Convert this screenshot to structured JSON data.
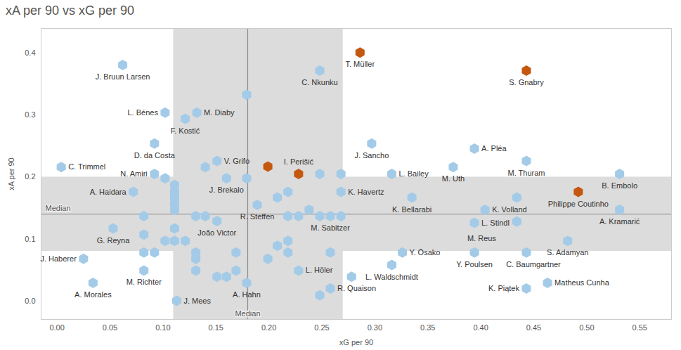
{
  "chart_data": {
    "type": "scatter",
    "title": "xA per 90 vs xG per 90",
    "x_label": "xG per 90",
    "y_label": "xA per 90",
    "xlim": [
      -0.015,
      0.58
    ],
    "ylim": [
      -0.03,
      0.44
    ],
    "xticks": [
      {
        "value": 0,
        "label": "0.00"
      },
      0.05,
      {
        "value": 0.1,
        "label": "0.10"
      },
      0.15,
      {
        "value": 0.2,
        "label": "0.20"
      },
      0.25,
      {
        "value": 0.3,
        "label": "0.30"
      },
      0.35,
      {
        "value": 0.4,
        "label": "0.40"
      },
      0.45,
      {
        "value": 0.5,
        "label": "0.50"
      },
      0.55
    ],
    "yticks": [
      {
        "value": 0,
        "label": "0.0"
      },
      0.1,
      0.2,
      0.3,
      0.4
    ],
    "grid": false,
    "marker": "hexagon",
    "bands": [
      {
        "axis": "x",
        "range": [
          0.11,
          0.27
        ]
      },
      {
        "axis": "y",
        "range": [
          0.08,
          0.2
        ]
      }
    ],
    "medians": [
      {
        "axis": "x",
        "value": 0.18,
        "label": "Median"
      },
      {
        "axis": "y",
        "value": 0.14,
        "label": "Median"
      }
    ],
    "x": [
      0.062,
      0.248,
      0.286,
      0.443,
      0.102,
      0.132,
      0.121,
      0.092,
      0.297,
      0.394,
      0.004,
      0.092,
      0.151,
      0.228,
      0.316,
      0.374,
      0.443,
      0.531,
      0.492,
      0.531,
      0.072,
      0.16,
      0.268,
      0.189,
      0.335,
      0.404,
      0.394,
      0.434,
      0.258,
      0.151,
      0.053,
      0.326,
      0.482,
      0.394,
      0.443,
      0.025,
      0.034,
      0.082,
      0.113,
      0.179,
      0.228,
      0.258,
      0.316,
      0.443,
      0.463,
      0.199,
      0.082,
      0.082,
      0.082,
      0.092,
      0.102,
      0.102,
      0.111,
      0.111,
      0.111,
      0.111,
      0.111,
      0.111,
      0.111,
      0.121,
      0.131,
      0.131,
      0.131,
      0.131,
      0.14,
      0.14,
      0.151,
      0.16,
      0.169,
      0.169,
      0.179,
      0.179,
      0.199,
      0.208,
      0.208,
      0.218,
      0.218,
      0.218,
      0.218,
      0.228,
      0.238,
      0.248,
      0.248,
      0.248,
      0.258,
      0.268,
      0.268,
      0.278,
      0.434
    ],
    "y": [
      0.381,
      0.372,
      0.401,
      0.372,
      0.304,
      0.304,
      0.294,
      0.254,
      0.254,
      0.246,
      0.216,
      0.205,
      0.226,
      0.205,
      0.205,
      0.216,
      0.226,
      0.205,
      0.176,
      0.147,
      0.176,
      0.198,
      0.176,
      0.155,
      0.167,
      0.147,
      0.126,
      0.128,
      0.137,
      0.129,
      0.117,
      0.078,
      0.097,
      0.078,
      0.078,
      0.068,
      0.029,
      0.049,
      0.0,
      0.029,
      0.049,
      0.02,
      0.058,
      0.02,
      0.029,
      0.217,
      0.137,
      0.107,
      0.078,
      0.078,
      0.198,
      0.097,
      0.187,
      0.176,
      0.167,
      0.157,
      0.147,
      0.117,
      0.097,
      0.097,
      0.137,
      0.078,
      0.068,
      0.049,
      0.216,
      0.137,
      0.039,
      0.039,
      0.078,
      0.049,
      0.333,
      0.198,
      0.068,
      0.167,
      0.089,
      0.176,
      0.137,
      0.097,
      0.078,
      0.137,
      0.147,
      0.205,
      0.137,
      0.009,
      0.078,
      0.205,
      0.137,
      0.039,
      0.167
    ],
    "labels": [
      "J. Bruun Larsen",
      "C. Nkunku",
      "T. Müller",
      "S. Gnabry",
      "L. Bénes",
      "M. Diaby",
      "F. Kostić",
      "D. da Costa",
      "J. Sancho",
      "A. Pléa",
      "C. Trimmel",
      "N. Amiri",
      "V. Grifo",
      "I. Perišić",
      "L. Bailey",
      "M. Uth",
      "M. Thuram",
      "B. Embolo",
      "Philippe Coutinho",
      "A. Kramarić",
      "A. Haidara",
      "J. Brekalo",
      "K. Havertz",
      "R. Steffen",
      "K. Bellarabi",
      "K. Volland",
      "L. Stindl",
      "M. Reus",
      "M. Sabitzer",
      "João Victor",
      "G. Reyna",
      "Y. Ōsako",
      "S. Adamyan",
      "Y. Poulsen",
      "C. Baumgartner",
      "J. Haberer",
      "A. Morales",
      "M. Richter",
      "J. Mees",
      "A. Hahn",
      "L. Höler",
      "R. Quaison",
      "L. Waldschmidt",
      "K. Piątek",
      "Matheus Cunha",
      null,
      null,
      null,
      null,
      null,
      null,
      null,
      null,
      null,
      null,
      null,
      null,
      null,
      null,
      null,
      null,
      null,
      null,
      null,
      null,
      null,
      null,
      null,
      null,
      null,
      null,
      null,
      null,
      null,
      null,
      null,
      null,
      null,
      null,
      null,
      null,
      null,
      null,
      null,
      null,
      null,
      null,
      null,
      null
    ],
    "colors": [
      "#a3cbe8",
      "#a3cbe8",
      "#c4580f",
      "#c4580f",
      "#a3cbe8",
      "#a3cbe8",
      "#a3cbe8",
      "#a3cbe8",
      "#a3cbe8",
      "#a3cbe8",
      "#a3cbe8",
      "#a3cbe8",
      "#a3cbe8",
      "#c4580f",
      "#a3cbe8",
      "#a3cbe8",
      "#a3cbe8",
      "#a3cbe8",
      "#c4580f",
      "#a3cbe8",
      "#a3cbe8",
      "#a3cbe8",
      "#a3cbe8",
      "#a3cbe8",
      "#a3cbe8",
      "#a3cbe8",
      "#a3cbe8",
      "#a3cbe8",
      "#a3cbe8",
      "#a3cbe8",
      "#a3cbe8",
      "#a3cbe8",
      "#a3cbe8",
      "#a3cbe8",
      "#a3cbe8",
      "#a3cbe8",
      "#a3cbe8",
      "#a3cbe8",
      "#a3cbe8",
      "#a3cbe8",
      "#a3cbe8",
      "#a3cbe8",
      "#a3cbe8",
      "#a3cbe8",
      "#a3cbe8",
      "#c4580f",
      "#a3cbe8",
      "#a3cbe8",
      "#a3cbe8",
      "#a3cbe8",
      "#a3cbe8",
      "#a3cbe8",
      "#a3cbe8",
      "#a3cbe8",
      "#a3cbe8",
      "#a3cbe8",
      "#a3cbe8",
      "#a3cbe8",
      "#a3cbe8",
      "#a3cbe8",
      "#a3cbe8",
      "#a3cbe8",
      "#a3cbe8",
      "#a3cbe8",
      "#a3cbe8",
      "#a3cbe8",
      "#a3cbe8",
      "#a3cbe8",
      "#a3cbe8",
      "#a3cbe8",
      "#a3cbe8",
      "#a3cbe8",
      "#a3cbe8",
      "#a3cbe8",
      "#a3cbe8",
      "#a3cbe8",
      "#a3cbe8",
      "#a3cbe8",
      "#a3cbe8",
      "#a3cbe8",
      "#a3cbe8",
      "#a3cbe8",
      "#a3cbe8",
      "#a3cbe8",
      "#a3cbe8",
      "#a3cbe8",
      "#a3cbe8",
      "#a3cbe8",
      "#a3cbe8"
    ]
  }
}
